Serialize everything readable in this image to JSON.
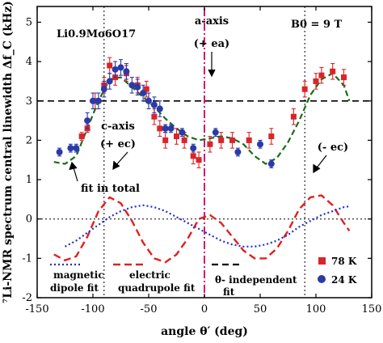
{
  "chart_data": {
    "type": "scatter",
    "title": "",
    "xlabel": "angle θ′ (deg)",
    "ylabel": "⁷Li-NMR spectrum central linewidth Δf_C (kHz)",
    "xlim": [
      -150,
      150
    ],
    "ylim": [
      -2,
      5.4
    ],
    "xticks": [
      -150,
      -100,
      -50,
      0,
      50,
      100,
      150
    ],
    "yticks": [
      -2,
      -1,
      0,
      1,
      2,
      3,
      4,
      5
    ],
    "grid": false,
    "colors": {
      "s78K": "#d9252a",
      "s24K": "#2a3aa8",
      "fit_total": "#1a6b1a",
      "quadrupole": "#e02020",
      "dipole": "#2030c0",
      "independent": "#000000",
      "aaxis": "#cc0066"
    },
    "annotations": {
      "compound": "Li0.9Mo6O17",
      "field": "B0 = 9 T",
      "a_axis": "a-axis",
      "a_axis_dir": "(+ ea)",
      "c_axis": "c-axis",
      "c_axis_dir": "(+ ec)",
      "minus_ec": "(- ec)",
      "fit_in_total": "fit in total"
    },
    "legend": {
      "placement": "bottom",
      "dipole": [
        "magnetic",
        "dipole fit"
      ],
      "quadrupole": [
        "electric",
        "quadrupole fit"
      ],
      "independent": [
        "θ- independent",
        "fit"
      ],
      "s78K": "78 K",
      "s24K": "24 K"
    },
    "reference_lines": {
      "y_dotted": [
        3.0,
        0.0
      ],
      "x_dotted": [
        -90,
        90
      ],
      "x_dashdot": [
        0
      ]
    },
    "series": [
      {
        "name": "78 K",
        "marker": "square",
        "x": [
          -110,
          -105,
          -98,
          -90,
          -85,
          -80,
          -70,
          -60,
          -52,
          -45,
          -40,
          -35,
          -25,
          -18,
          -10,
          -5,
          5,
          15,
          25,
          40,
          60,
          80,
          90,
          100,
          105,
          115,
          125
        ],
        "y": [
          2.1,
          2.3,
          3.0,
          3.4,
          3.9,
          3.6,
          3.7,
          3.4,
          3.3,
          2.6,
          2.3,
          2.0,
          2.1,
          2.0,
          1.6,
          1.5,
          1.9,
          2.0,
          2.0,
          2.0,
          2.1,
          2.6,
          3.3,
          3.5,
          3.65,
          3.75,
          3.6
        ],
        "err": [
          0.1,
          0.1,
          0.2,
          0.2,
          0.2,
          0.2,
          0.2,
          0.2,
          0.2,
          0.2,
          0.2,
          0.2,
          0.2,
          0.2,
          0.2,
          0.2,
          0.2,
          0.2,
          0.2,
          0.2,
          0.2,
          0.2,
          0.2,
          0.2,
          0.2,
          0.2,
          0.2
        ]
      },
      {
        "name": "24 K",
        "marker": "circle",
        "x": [
          -130,
          -120,
          -115,
          -105,
          -100,
          -95,
          -90,
          -85,
          -80,
          -75,
          -70,
          -65,
          -60,
          -55,
          -50,
          -45,
          -40,
          -35,
          -30,
          -20,
          -10,
          10,
          30,
          50,
          60
        ],
        "y": [
          1.7,
          1.8,
          1.8,
          2.5,
          3.0,
          3.0,
          3.3,
          3.5,
          3.8,
          3.85,
          3.75,
          3.4,
          3.35,
          3.2,
          3.0,
          2.9,
          2.8,
          2.3,
          2.3,
          2.2,
          1.8,
          2.2,
          1.7,
          1.9,
          1.4
        ],
        "err": [
          0.1,
          0.1,
          0.1,
          0.2,
          0.2,
          0.2,
          0.2,
          0.2,
          0.2,
          0.2,
          0.2,
          0.2,
          0.2,
          0.2,
          0.2,
          0.2,
          0.2,
          0.1,
          0.1,
          0.1,
          0.1,
          0.1,
          0.1,
          0.1,
          0.1
        ]
      },
      {
        "name": "fit in total",
        "style": "dashed",
        "x": [
          -135,
          -125,
          -115,
          -105,
          -95,
          -85,
          -75,
          -65,
          -55,
          -45,
          -35,
          -25,
          -15,
          -5,
          5,
          15,
          25,
          35,
          45,
          55,
          65,
          75,
          85,
          95,
          105,
          115,
          125,
          130
        ],
        "y": [
          1.45,
          1.4,
          1.6,
          2.3,
          3.0,
          3.55,
          3.6,
          3.35,
          3.1,
          2.85,
          2.55,
          2.3,
          2.1,
          2.0,
          2.05,
          2.1,
          2.05,
          1.9,
          1.6,
          1.4,
          1.55,
          1.95,
          2.5,
          3.15,
          3.55,
          3.7,
          3.4,
          3.0
        ]
      },
      {
        "name": "electric quadrupole fit",
        "style": "dashed",
        "x": [
          -135,
          -125,
          -115,
          -105,
          -95,
          -85,
          -75,
          -65,
          -55,
          -45,
          -35,
          -25,
          -15,
          -5,
          5,
          15,
          25,
          35,
          45,
          55,
          65,
          75,
          85,
          95,
          105,
          115,
          125,
          130
        ],
        "y": [
          -0.9,
          -1.05,
          -0.95,
          -0.45,
          0.2,
          0.55,
          0.4,
          -0.05,
          -0.6,
          -1.0,
          -1.1,
          -0.9,
          -0.5,
          0.0,
          0.1,
          -0.1,
          -0.45,
          -0.8,
          -1.0,
          -1.0,
          -0.75,
          -0.3,
          0.25,
          0.55,
          0.6,
          0.35,
          -0.1,
          -0.3
        ]
      },
      {
        "name": "magnetic dipole fit",
        "style": "dotted",
        "x": [
          -125,
          -115,
          -105,
          -95,
          -85,
          -75,
          -65,
          -55,
          -45,
          -35,
          -25,
          -15,
          -5,
          5,
          15,
          25,
          35,
          45,
          55,
          65,
          75,
          85,
          95,
          105,
          115,
          125,
          130
        ],
        "y": [
          -0.7,
          -0.55,
          -0.35,
          -0.15,
          0.05,
          0.2,
          0.3,
          0.35,
          0.3,
          0.2,
          0.05,
          -0.1,
          -0.25,
          -0.4,
          -0.55,
          -0.65,
          -0.7,
          -0.7,
          -0.65,
          -0.55,
          -0.4,
          -0.2,
          -0.05,
          0.1,
          0.2,
          0.3,
          0.32
        ]
      },
      {
        "name": "θ- independent fit",
        "style": "dashed",
        "x": [
          -150,
          150
        ],
        "y": [
          3.0,
          3.0
        ]
      }
    ]
  }
}
